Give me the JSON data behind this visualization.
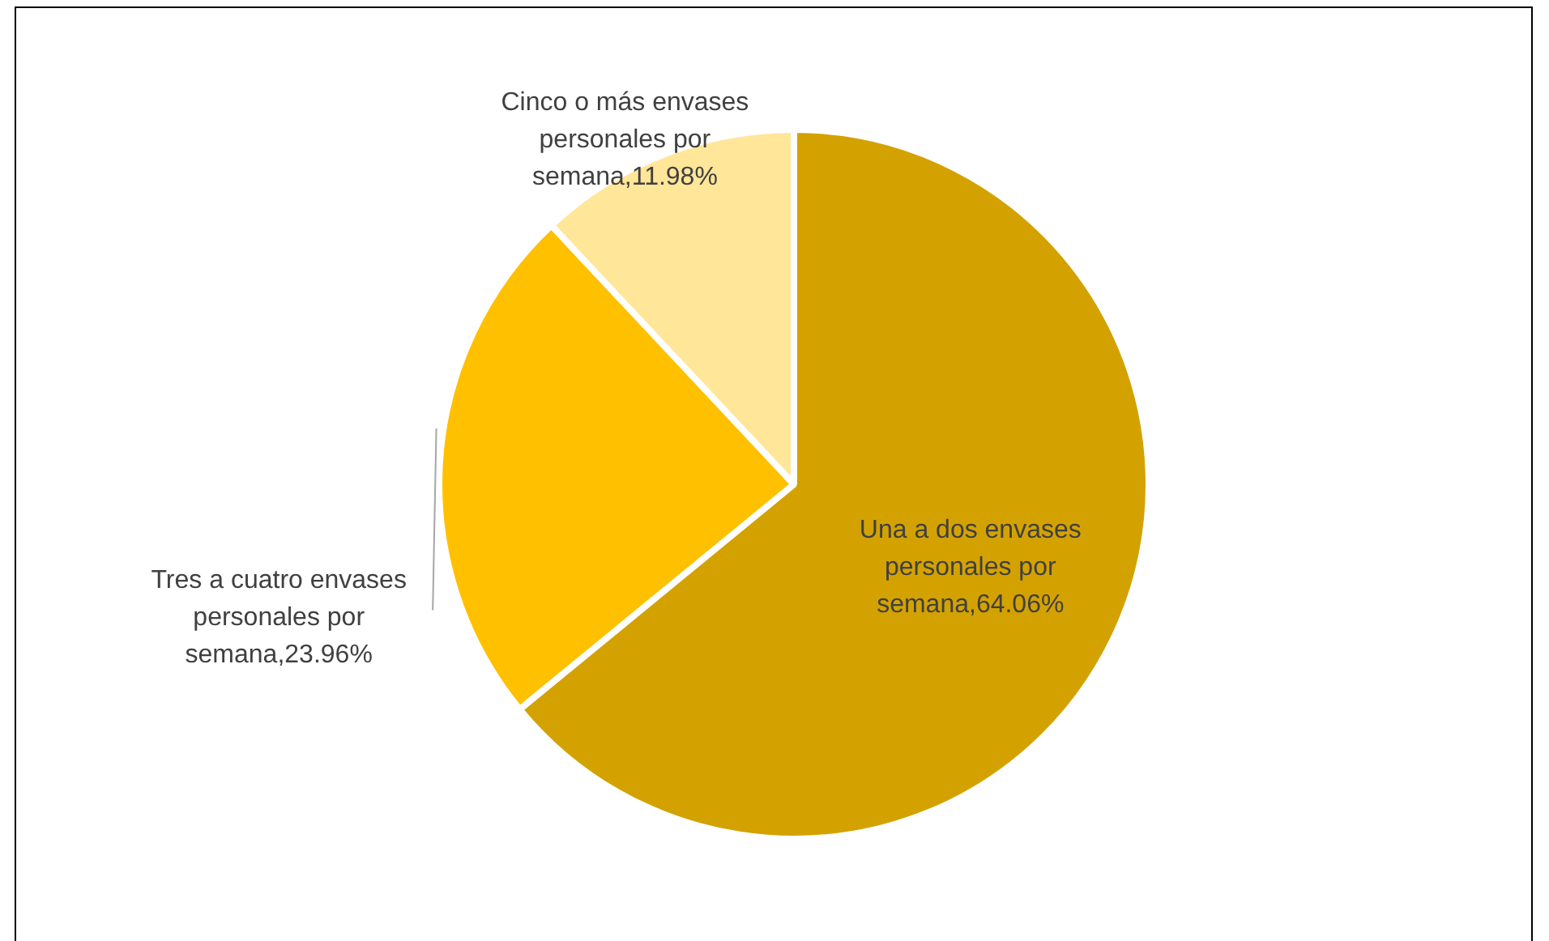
{
  "chart_data": {
    "type": "pie",
    "categories": [
      "Una a dos envases personales por semana",
      "Tres a cuatro envases personales por semana",
      "Cinco o más envases personales por semana"
    ],
    "values": [
      64.06,
      23.96,
      11.98
    ],
    "value_labels": [
      "64.06%",
      "23.96%",
      "11.98%"
    ],
    "colors": [
      "#d4a200",
      "#ffc000",
      "#ffe699"
    ],
    "legend": false
  }
}
